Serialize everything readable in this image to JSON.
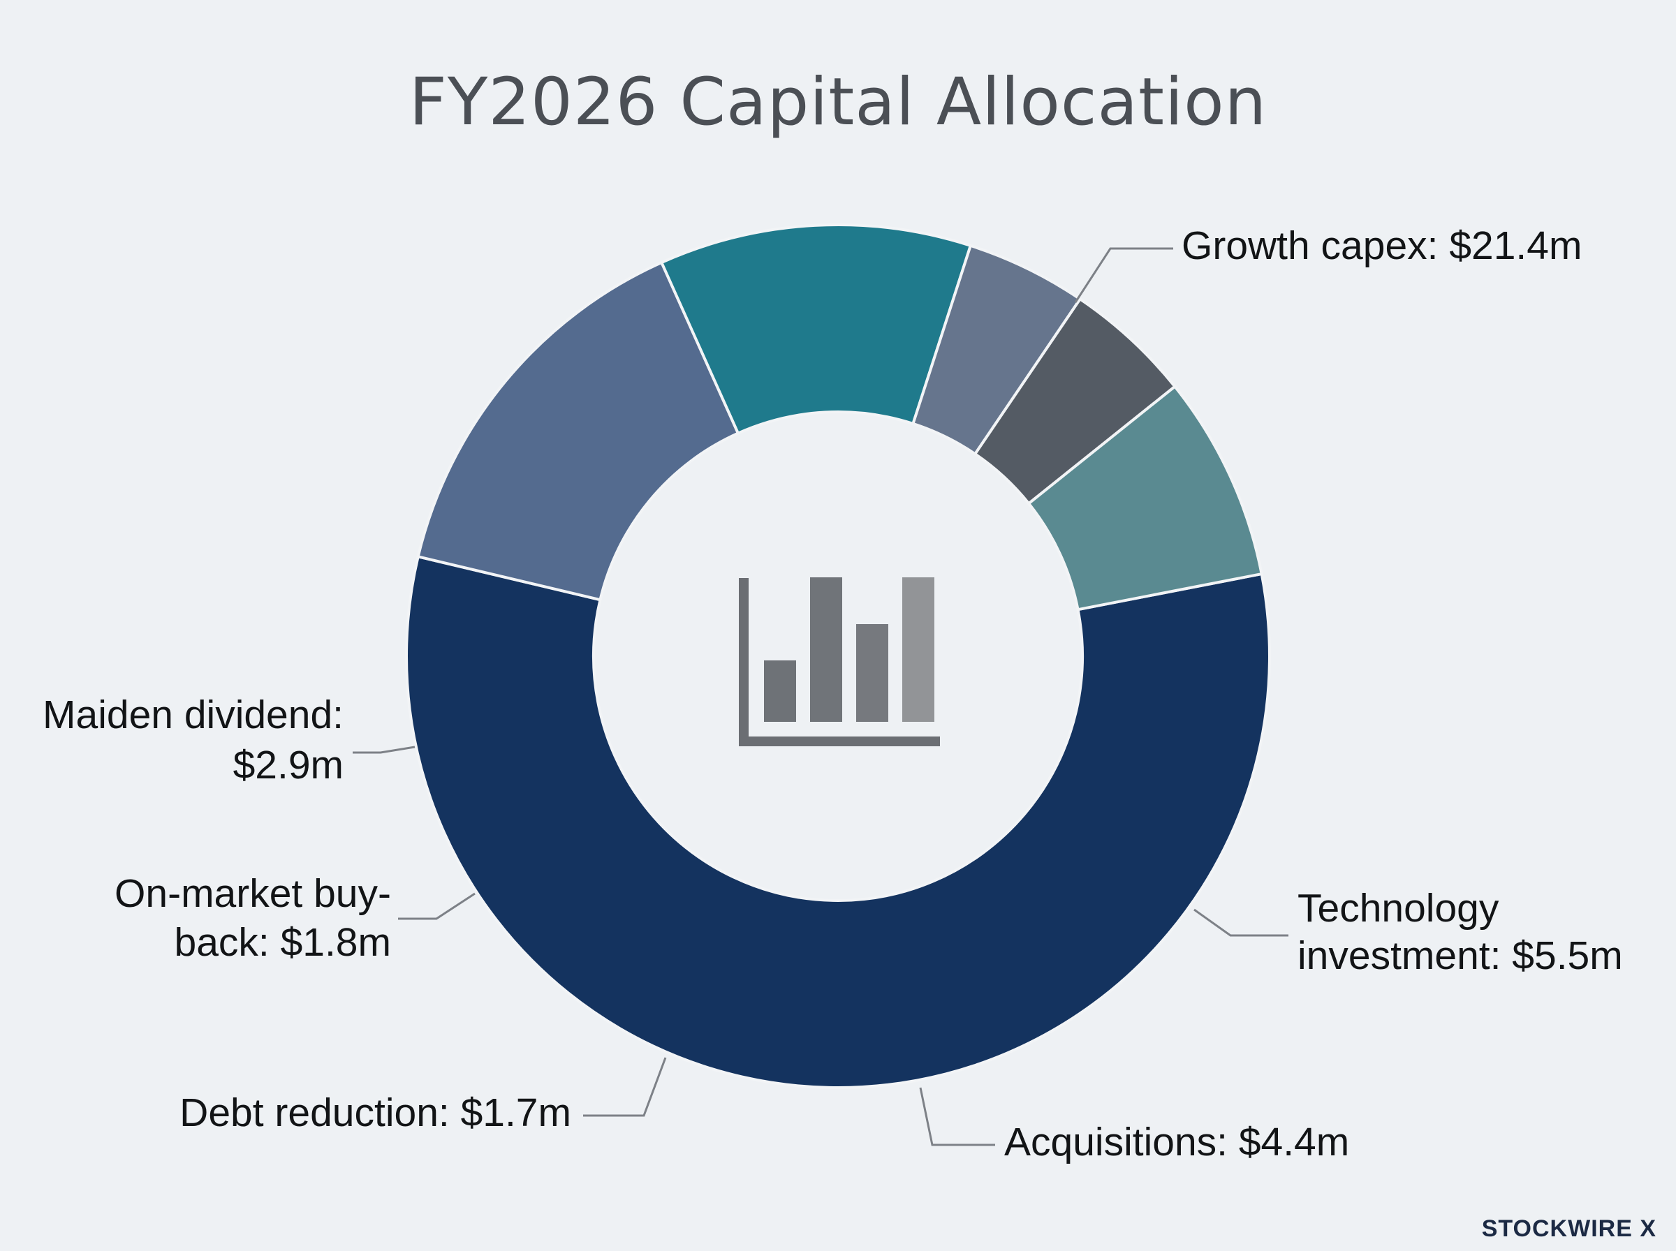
{
  "chart_data": {
    "type": "pie",
    "variant": "donut",
    "title": "FY2026 Capital Allocation",
    "unit": "$m",
    "categories": [
      "Growth capex",
      "Technology investment",
      "Acquisitions",
      "Debt reduction",
      "On-market buy-back",
      "Maiden dividend"
    ],
    "values": [
      21.4,
      5.5,
      4.4,
      1.7,
      1.8,
      2.9
    ],
    "labels": [
      [
        "Growth capex: $21.4m"
      ],
      [
        "Technology",
        "investment: $5.5m"
      ],
      [
        "Acquisitions: $4.4m"
      ],
      [
        "Debt reduction: $1.7m"
      ],
      [
        "On-market buy-",
        "back: $1.8m"
      ],
      [
        "Maiden dividend:",
        "$2.9m"
      ]
    ],
    "colors": [
      "#14335f",
      "#546b8f",
      "#1f7a8c",
      "#66758d",
      "#545b64",
      "#5a8a91"
    ],
    "center_icon": "bar-chart-icon",
    "legend": "none"
  },
  "brand": "STOCKWIRE X"
}
